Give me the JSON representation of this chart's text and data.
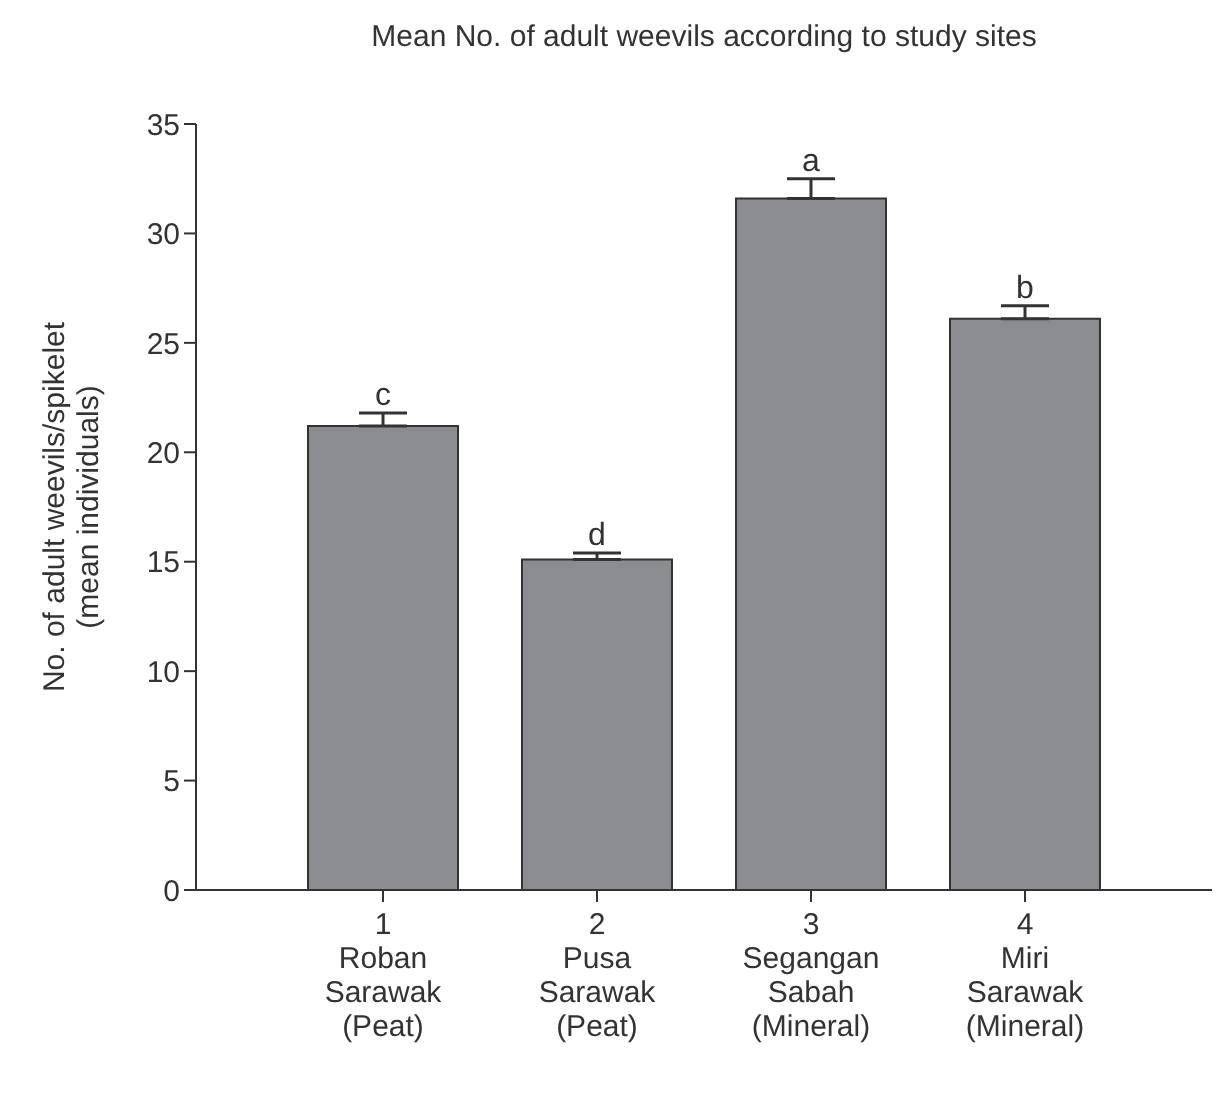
{
  "chart_data": {
    "type": "bar",
    "title": "Mean No. of adult weevils according to study sites",
    "ylabel": "No. of adult weevils/spikelet\n(mean individuals)",
    "categories": [
      "1\nRoban\nSarawak\n(Peat)",
      "2\nPusa\nSarawak\n(Peat)",
      "3\nSegangan\nSabah\n(Mineral)",
      "4\nMiri\nSarawak\n(Mineral)"
    ],
    "values": [
      21.2,
      15.1,
      31.6,
      26.1
    ],
    "errors": [
      [
        21.2,
        21.8
      ],
      [
        15.1,
        15.4
      ],
      [
        31.6,
        32.5
      ],
      [
        26.1,
        26.7
      ]
    ],
    "color": "#8b8c90",
    "ylim": [
      0,
      35
    ],
    "yticks": [
      0,
      5,
      10,
      15,
      20,
      25,
      30,
      35
    ],
    "grid": false,
    "annotations": [
      {
        "text": "c",
        "x": "1\nRoban\nSarawak\n(Peat)",
        "y": 21.8
      },
      {
        "text": "d",
        "x": "2\nPusa\nSarawak\n(Peat)",
        "y": 15.4
      },
      {
        "text": "a",
        "x": "3\nSegangan\nSabah\n(Mineral)",
        "y": 32.5
      },
      {
        "text": "b",
        "x": "4\nMiri\nSarawak\n(Mineral)",
        "y": 26.7
      }
    ]
  }
}
